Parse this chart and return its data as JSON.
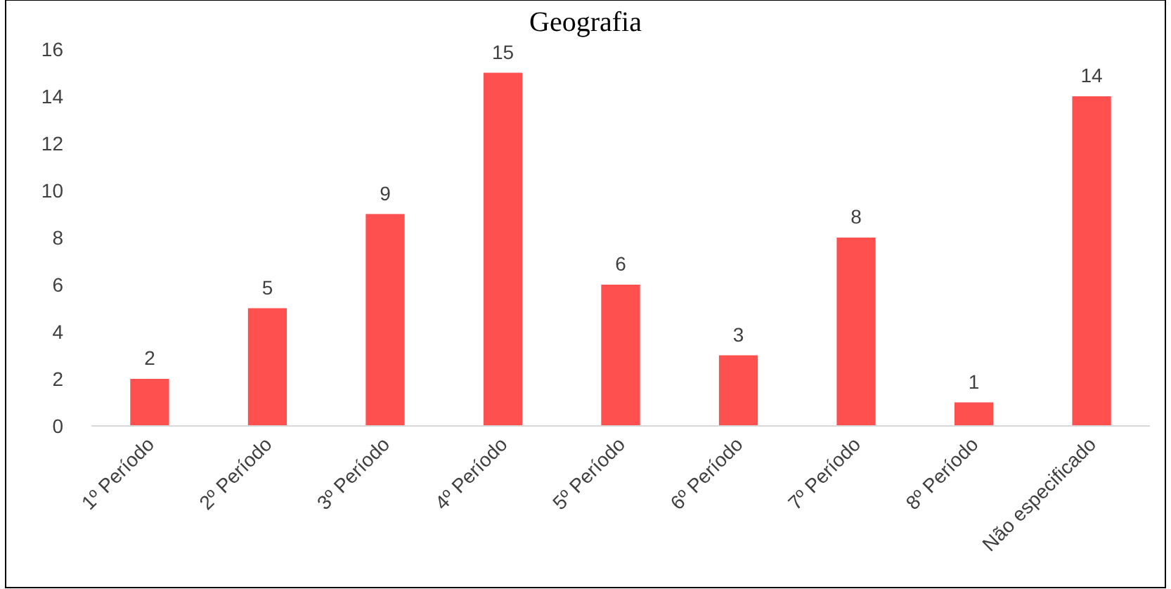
{
  "chart_data": {
    "type": "bar",
    "title": "Geografia",
    "categories": [
      "1º Período",
      "2º Período",
      "3º Período",
      "4º Período",
      "5º Período",
      "6º Período",
      "7º Período",
      "8º Período",
      "Não especificado"
    ],
    "values": [
      2,
      5,
      9,
      15,
      6,
      3,
      8,
      1,
      14
    ],
    "color": "#ff5050",
    "ylim": [
      0,
      16
    ],
    "yticks": [
      0,
      2,
      4,
      6,
      8,
      10,
      12,
      14,
      16
    ],
    "grid": false,
    "data_labels": true
  }
}
